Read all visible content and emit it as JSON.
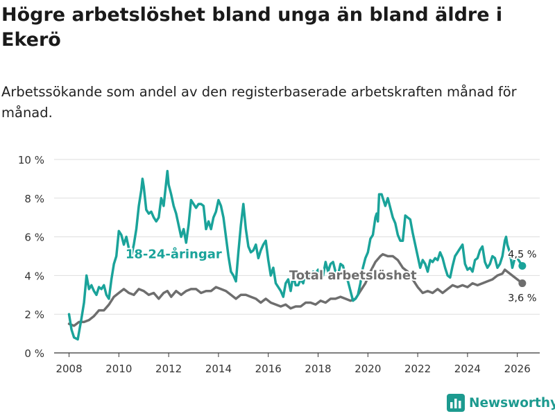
{
  "title": "Högre arbetslöshet bland unga än bland äldre i Ekerö",
  "subtitle": "Arbetssökande som andel av den registerbaserade arbetskraften månad för månad.",
  "brand": "Newsworthy",
  "colors": {
    "youth": "#1aa39a",
    "total": "#6e6e6e",
    "grid": "#dddddd",
    "axis": "#333333",
    "brand": "#1c9a8f"
  },
  "chart_data": {
    "type": "line",
    "title": "Högre arbetslöshet bland unga än bland äldre i Ekerö",
    "xlabel": "",
    "ylabel": "",
    "xlim": [
      2007.4,
      2026.9
    ],
    "ylim": [
      0,
      10
    ],
    "x_ticks": [
      2008,
      2010,
      2012,
      2014,
      2016,
      2018,
      2020,
      2022,
      2024,
      2026
    ],
    "y_ticks": [
      0,
      2,
      4,
      6,
      8,
      10
    ],
    "y_tick_labels": [
      "0 %",
      "2 %",
      "4 %",
      "6 %",
      "8 %",
      "10 %"
    ],
    "series": [
      {
        "name": "18-24-åringar",
        "label": "18-24-åringar",
        "end_label": "4,5 %",
        "points": [
          [
            2008.0,
            2.0
          ],
          [
            2008.1,
            1.2
          ],
          [
            2008.2,
            0.8
          ],
          [
            2008.35,
            0.7
          ],
          [
            2008.5,
            1.8
          ],
          [
            2008.6,
            2.6
          ],
          [
            2008.7,
            4.0
          ],
          [
            2008.8,
            3.3
          ],
          [
            2008.9,
            3.5
          ],
          [
            2009.0,
            3.2
          ],
          [
            2009.1,
            3.0
          ],
          [
            2009.2,
            3.4
          ],
          [
            2009.3,
            3.3
          ],
          [
            2009.4,
            3.5
          ],
          [
            2009.5,
            3.0
          ],
          [
            2009.6,
            2.8
          ],
          [
            2009.7,
            3.8
          ],
          [
            2009.8,
            4.6
          ],
          [
            2009.9,
            5.0
          ],
          [
            2010.0,
            6.3
          ],
          [
            2010.1,
            6.1
          ],
          [
            2010.2,
            5.6
          ],
          [
            2010.3,
            6.0
          ],
          [
            2010.4,
            5.4
          ],
          [
            2010.5,
            5.0
          ],
          [
            2010.6,
            5.6
          ],
          [
            2010.7,
            6.4
          ],
          [
            2010.8,
            7.6
          ],
          [
            2010.9,
            8.4
          ],
          [
            2010.95,
            9.0
          ],
          [
            2011.0,
            8.6
          ],
          [
            2011.1,
            7.4
          ],
          [
            2011.2,
            7.2
          ],
          [
            2011.3,
            7.3
          ],
          [
            2011.4,
            7.0
          ],
          [
            2011.5,
            6.8
          ],
          [
            2011.6,
            7.0
          ],
          [
            2011.7,
            8.0
          ],
          [
            2011.8,
            7.6
          ],
          [
            2011.9,
            8.8
          ],
          [
            2011.95,
            9.4
          ],
          [
            2012.0,
            8.7
          ],
          [
            2012.1,
            8.2
          ],
          [
            2012.2,
            7.6
          ],
          [
            2012.3,
            7.2
          ],
          [
            2012.4,
            6.6
          ],
          [
            2012.5,
            6.0
          ],
          [
            2012.6,
            6.4
          ],
          [
            2012.7,
            5.7
          ],
          [
            2012.8,
            6.6
          ],
          [
            2012.9,
            7.9
          ],
          [
            2013.0,
            7.7
          ],
          [
            2013.1,
            7.5
          ],
          [
            2013.2,
            7.7
          ],
          [
            2013.3,
            7.7
          ],
          [
            2013.4,
            7.6
          ],
          [
            2013.5,
            6.4
          ],
          [
            2013.6,
            6.8
          ],
          [
            2013.7,
            6.4
          ],
          [
            2013.8,
            7.0
          ],
          [
            2013.9,
            7.3
          ],
          [
            2014.0,
            7.9
          ],
          [
            2014.1,
            7.6
          ],
          [
            2014.2,
            7.0
          ],
          [
            2014.3,
            6.0
          ],
          [
            2014.4,
            5.0
          ],
          [
            2014.5,
            4.2
          ],
          [
            2014.6,
            4.0
          ],
          [
            2014.7,
            3.7
          ],
          [
            2014.8,
            5.2
          ],
          [
            2014.9,
            6.6
          ],
          [
            2015.0,
            7.7
          ],
          [
            2015.1,
            6.4
          ],
          [
            2015.2,
            5.5
          ],
          [
            2015.3,
            5.2
          ],
          [
            2015.4,
            5.3
          ],
          [
            2015.5,
            5.6
          ],
          [
            2015.6,
            4.9
          ],
          [
            2015.7,
            5.3
          ],
          [
            2015.8,
            5.6
          ],
          [
            2015.9,
            5.8
          ],
          [
            2016.0,
            4.8
          ],
          [
            2016.1,
            4.0
          ],
          [
            2016.2,
            4.4
          ],
          [
            2016.3,
            3.6
          ],
          [
            2016.4,
            3.4
          ],
          [
            2016.5,
            3.2
          ],
          [
            2016.6,
            2.9
          ],
          [
            2016.7,
            3.6
          ],
          [
            2016.8,
            3.8
          ],
          [
            2016.9,
            3.2
          ],
          [
            2017.0,
            4.0
          ],
          [
            2017.1,
            3.5
          ],
          [
            2017.2,
            3.5
          ],
          [
            2017.3,
            3.8
          ],
          [
            2017.4,
            3.6
          ],
          [
            2017.5,
            4.2
          ],
          [
            2017.6,
            3.9
          ],
          [
            2017.7,
            4.0
          ],
          [
            2017.8,
            4.2
          ],
          [
            2017.9,
            4.1
          ],
          [
            2018.0,
            4.3
          ],
          [
            2018.1,
            3.9
          ],
          [
            2018.2,
            4.0
          ],
          [
            2018.3,
            4.7
          ],
          [
            2018.4,
            4.2
          ],
          [
            2018.5,
            4.6
          ],
          [
            2018.6,
            4.7
          ],
          [
            2018.7,
            4.2
          ],
          [
            2018.8,
            4.0
          ],
          [
            2018.9,
            4.6
          ],
          [
            2019.0,
            4.5
          ],
          [
            2019.1,
            4.0
          ],
          [
            2019.2,
            3.7
          ],
          [
            2019.3,
            3.2
          ],
          [
            2019.4,
            2.7
          ],
          [
            2019.5,
            2.8
          ],
          [
            2019.6,
            3.0
          ],
          [
            2019.7,
            3.6
          ],
          [
            2019.8,
            4.4
          ],
          [
            2019.9,
            4.9
          ],
          [
            2020.0,
            5.2
          ],
          [
            2020.1,
            5.9
          ],
          [
            2020.2,
            6.1
          ],
          [
            2020.3,
            7.0
          ],
          [
            2020.35,
            7.2
          ],
          [
            2020.4,
            6.8
          ],
          [
            2020.45,
            8.2
          ],
          [
            2020.55,
            8.2
          ],
          [
            2020.6,
            8.0
          ],
          [
            2020.7,
            7.6
          ],
          [
            2020.8,
            8.0
          ],
          [
            2020.9,
            7.5
          ],
          [
            2021.0,
            7.0
          ],
          [
            2021.1,
            6.7
          ],
          [
            2021.2,
            6.1
          ],
          [
            2021.3,
            5.8
          ],
          [
            2021.4,
            5.8
          ],
          [
            2021.5,
            7.1
          ],
          [
            2021.6,
            7.0
          ],
          [
            2021.7,
            6.9
          ],
          [
            2021.8,
            6.2
          ],
          [
            2021.9,
            5.6
          ],
          [
            2022.0,
            5.0
          ],
          [
            2022.1,
            4.4
          ],
          [
            2022.2,
            4.8
          ],
          [
            2022.3,
            4.6
          ],
          [
            2022.4,
            4.2
          ],
          [
            2022.5,
            4.8
          ],
          [
            2022.6,
            4.7
          ],
          [
            2022.7,
            4.9
          ],
          [
            2022.8,
            4.8
          ],
          [
            2022.9,
            5.2
          ],
          [
            2023.0,
            4.9
          ],
          [
            2023.1,
            4.4
          ],
          [
            2023.2,
            4.0
          ],
          [
            2023.3,
            3.9
          ],
          [
            2023.4,
            4.5
          ],
          [
            2023.5,
            5.0
          ],
          [
            2023.6,
            5.2
          ],
          [
            2023.7,
            5.4
          ],
          [
            2023.8,
            5.6
          ],
          [
            2023.9,
            4.6
          ],
          [
            2024.0,
            4.3
          ],
          [
            2024.1,
            4.4
          ],
          [
            2024.2,
            4.2
          ],
          [
            2024.3,
            4.8
          ],
          [
            2024.4,
            4.9
          ],
          [
            2024.5,
            5.3
          ],
          [
            2024.6,
            5.5
          ],
          [
            2024.7,
            4.7
          ],
          [
            2024.8,
            4.4
          ],
          [
            2024.9,
            4.6
          ],
          [
            2025.0,
            5.0
          ],
          [
            2025.1,
            4.9
          ],
          [
            2025.2,
            4.4
          ],
          [
            2025.3,
            4.6
          ],
          [
            2025.4,
            5.0
          ],
          [
            2025.5,
            5.8
          ],
          [
            2025.55,
            6.0
          ],
          [
            2025.6,
            5.6
          ],
          [
            2025.7,
            5.2
          ],
          [
            2025.8,
            4.4
          ],
          [
            2025.9,
            4.9
          ],
          [
            2026.0,
            4.9
          ],
          [
            2026.1,
            4.7
          ],
          [
            2026.2,
            4.5
          ]
        ]
      },
      {
        "name": "Total arbetslöshet",
        "label": "Total arbetslöshet",
        "end_label": "3,6 %",
        "points": [
          [
            2008.0,
            1.5
          ],
          [
            2008.2,
            1.4
          ],
          [
            2008.4,
            1.6
          ],
          [
            2008.6,
            1.6
          ],
          [
            2008.8,
            1.7
          ],
          [
            2009.0,
            1.9
          ],
          [
            2009.2,
            2.2
          ],
          [
            2009.4,
            2.2
          ],
          [
            2009.6,
            2.5
          ],
          [
            2009.8,
            2.9
          ],
          [
            2010.0,
            3.1
          ],
          [
            2010.2,
            3.3
          ],
          [
            2010.4,
            3.1
          ],
          [
            2010.6,
            3.0
          ],
          [
            2010.8,
            3.3
          ],
          [
            2011.0,
            3.2
          ],
          [
            2011.2,
            3.0
          ],
          [
            2011.4,
            3.1
          ],
          [
            2011.6,
            2.8
          ],
          [
            2011.8,
            3.1
          ],
          [
            2011.95,
            3.2
          ],
          [
            2012.1,
            2.9
          ],
          [
            2012.3,
            3.2
          ],
          [
            2012.5,
            3.0
          ],
          [
            2012.7,
            3.2
          ],
          [
            2012.9,
            3.3
          ],
          [
            2013.1,
            3.3
          ],
          [
            2013.3,
            3.1
          ],
          [
            2013.5,
            3.2
          ],
          [
            2013.7,
            3.2
          ],
          [
            2013.9,
            3.4
          ],
          [
            2014.1,
            3.3
          ],
          [
            2014.3,
            3.2
          ],
          [
            2014.5,
            3.0
          ],
          [
            2014.7,
            2.8
          ],
          [
            2014.9,
            3.0
          ],
          [
            2015.1,
            3.0
          ],
          [
            2015.3,
            2.9
          ],
          [
            2015.5,
            2.8
          ],
          [
            2015.7,
            2.6
          ],
          [
            2015.9,
            2.8
          ],
          [
            2016.1,
            2.6
          ],
          [
            2016.3,
            2.5
          ],
          [
            2016.5,
            2.4
          ],
          [
            2016.7,
            2.5
          ],
          [
            2016.9,
            2.3
          ],
          [
            2017.1,
            2.4
          ],
          [
            2017.3,
            2.4
          ],
          [
            2017.5,
            2.6
          ],
          [
            2017.7,
            2.6
          ],
          [
            2017.9,
            2.5
          ],
          [
            2018.1,
            2.7
          ],
          [
            2018.3,
            2.6
          ],
          [
            2018.5,
            2.8
          ],
          [
            2018.7,
            2.8
          ],
          [
            2018.9,
            2.9
          ],
          [
            2019.1,
            2.8
          ],
          [
            2019.3,
            2.7
          ],
          [
            2019.5,
            2.8
          ],
          [
            2019.7,
            3.2
          ],
          [
            2019.9,
            3.6
          ],
          [
            2020.1,
            4.2
          ],
          [
            2020.3,
            4.7
          ],
          [
            2020.5,
            5.0
          ],
          [
            2020.6,
            5.1
          ],
          [
            2020.8,
            5.0
          ],
          [
            2021.0,
            5.0
          ],
          [
            2021.2,
            4.8
          ],
          [
            2021.4,
            4.4
          ],
          [
            2021.6,
            4.2
          ],
          [
            2021.8,
            3.8
          ],
          [
            2022.0,
            3.4
          ],
          [
            2022.2,
            3.1
          ],
          [
            2022.4,
            3.2
          ],
          [
            2022.6,
            3.1
          ],
          [
            2022.8,
            3.3
          ],
          [
            2023.0,
            3.1
          ],
          [
            2023.2,
            3.3
          ],
          [
            2023.4,
            3.5
          ],
          [
            2023.6,
            3.4
          ],
          [
            2023.8,
            3.5
          ],
          [
            2024.0,
            3.4
          ],
          [
            2024.2,
            3.6
          ],
          [
            2024.4,
            3.5
          ],
          [
            2024.6,
            3.6
          ],
          [
            2024.8,
            3.7
          ],
          [
            2025.0,
            3.8
          ],
          [
            2025.2,
            4.0
          ],
          [
            2025.4,
            4.1
          ],
          [
            2025.5,
            4.3
          ],
          [
            2025.7,
            4.1
          ],
          [
            2025.9,
            3.9
          ],
          [
            2026.0,
            3.8
          ],
          [
            2026.2,
            3.6
          ]
        ]
      }
    ]
  }
}
